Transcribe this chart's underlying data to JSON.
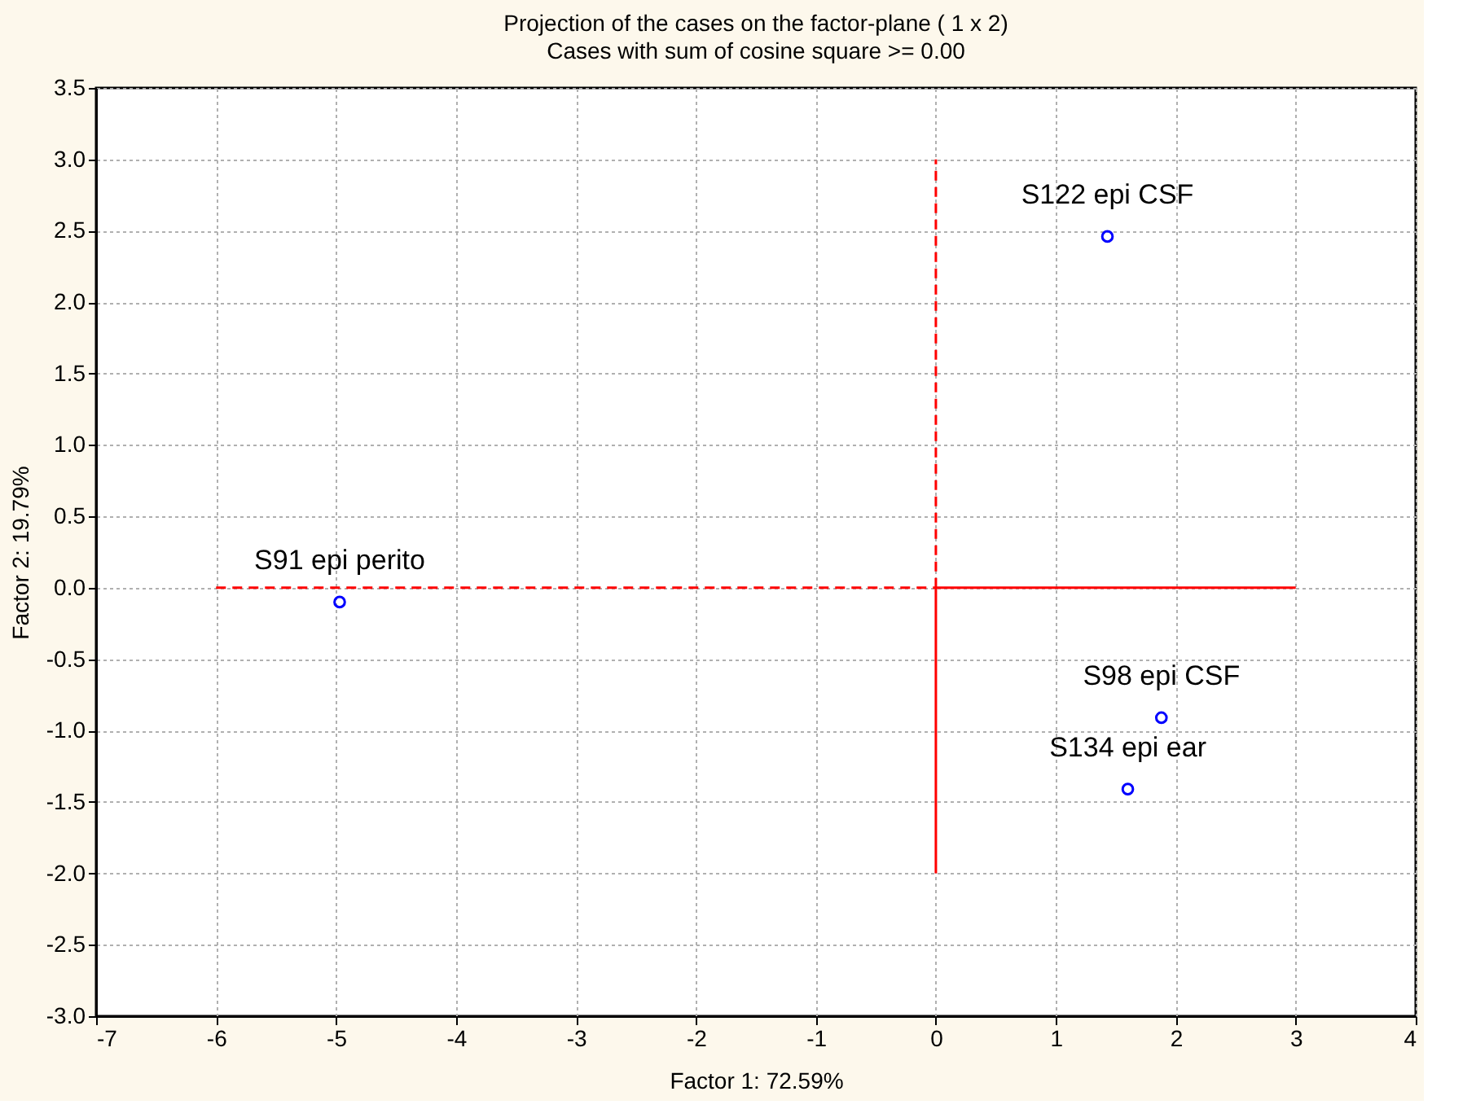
{
  "chart_data": {
    "type": "scatter",
    "title": "Projection of the cases on the factor-plane (  1 x   2)",
    "subtitle": "Cases with sum of cosine square >=  0.00",
    "xlabel": "Factor 1: 72.59%",
    "ylabel": "Factor 2: 19.79%",
    "xlim": [
      -7,
      4
    ],
    "xticks": [
      -7,
      -6,
      -5,
      -4,
      -3,
      -2,
      -1,
      0,
      1,
      2,
      3,
      4
    ],
    "ylim": [
      -3.0,
      3.5
    ],
    "yticks": [
      {
        "value": -3,
        "label": "-3.0"
      },
      {
        "value": -2.5,
        "label": "-2.5"
      },
      {
        "value": -2,
        "label": "-2.0"
      },
      {
        "value": -1.5,
        "label": "-1.5"
      },
      {
        "value": -1,
        "label": "-1.0"
      },
      {
        "value": -0.5,
        "label": "-0.5"
      },
      {
        "value": 0,
        "label": "0.0"
      },
      {
        "value": 0.5,
        "label": "0.5"
      },
      {
        "value": 1,
        "label": "1.0"
      },
      {
        "value": 1.5,
        "label": "1.5"
      },
      {
        "value": 2,
        "label": "2.0"
      },
      {
        "value": 2.5,
        "label": "2.5"
      },
      {
        "value": 3,
        "label": "3.0"
      },
      {
        "value": 3.5,
        "label": "3.5"
      }
    ],
    "grid": true,
    "marker": "circle",
    "series": [
      {
        "type": "line",
        "marker": "none",
        "color": "#ff0000",
        "line_style": "dashed",
        "x": [
          -6,
          0
        ],
        "values": [
          0,
          0
        ]
      },
      {
        "type": "line",
        "marker": "none",
        "color": "#ff0000",
        "line_style": "solid",
        "x": [
          0,
          3
        ],
        "values": [
          0,
          0
        ]
      },
      {
        "type": "line",
        "marker": "none",
        "color": "#ff0000",
        "line_style": "dashed",
        "x": [
          0,
          0
        ],
        "values": [
          0,
          3
        ]
      },
      {
        "type": "line",
        "marker": "none",
        "color": "#ff0000",
        "line_style": "solid",
        "x": [
          0,
          0
        ],
        "values": [
          -2,
          0
        ]
      },
      {
        "color": "#0000ff",
        "x": [
          -4.97,
          1.43,
          1.88,
          1.6
        ],
        "values": [
          -0.1,
          2.46,
          -0.91,
          -1.41
        ]
      }
    ],
    "annotations": [
      {
        "text": "S91 epi perito",
        "x": -4.97,
        "y": -0.1
      },
      {
        "text": "S122 epi CSF",
        "x": 1.43,
        "y": 2.46
      },
      {
        "text": "S98 epi CSF",
        "x": 1.88,
        "y": -0.91
      },
      {
        "text": "S134 epi ear",
        "x": 1.6,
        "y": -1.41
      }
    ]
  }
}
